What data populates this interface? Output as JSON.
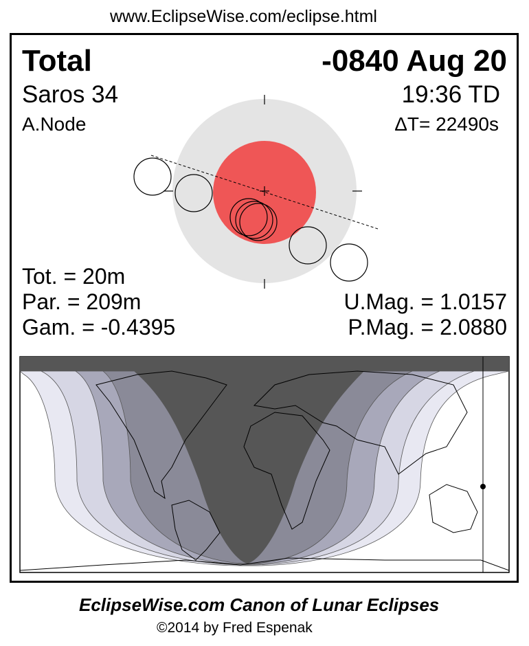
{
  "url": "www.EclipseWise.com/eclipse.html",
  "type": "Total",
  "date": "-0840 Aug 20",
  "saros": "Saros  34",
  "time": "19:36 TD",
  "node": "A.Node",
  "delta_t": "ΔT=  22490s",
  "tot": "Tot. =  20m",
  "par": "Par. = 209m",
  "gam": "Gam. = -0.4395",
  "umag": "U.Mag. = 1.0157",
  "pmag": "P.Mag. = 2.0880",
  "footer_title": "EclipseWise.com Canon of Lunar Eclipses",
  "footer_copy": "©2014 by Fred Espenak",
  "colors": {
    "umbra": "#ef5656",
    "penumbra": "#e4e4e4",
    "map_dark": "#565656",
    "band1": "#8a8a98",
    "band2": "#a8a8ba",
    "band3": "#d6d6e4",
    "band4": "#e8e8f2"
  }
}
